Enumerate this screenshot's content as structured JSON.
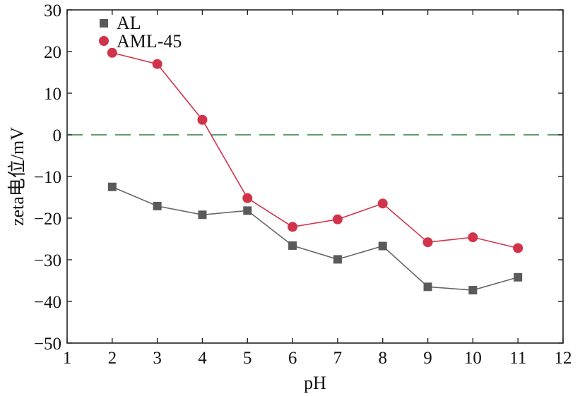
{
  "chart_data": {
    "type": "line",
    "title": "",
    "xlabel": "pH",
    "ylabel": "zeta电位/mV",
    "xlim": [
      1,
      12
    ],
    "ylim": [
      -50,
      30
    ],
    "xticks": [
      1,
      2,
      3,
      4,
      5,
      6,
      7,
      8,
      9,
      10,
      11,
      12
    ],
    "yticks": [
      30,
      20,
      10,
      0,
      -10,
      -20,
      -30,
      -40,
      -50
    ],
    "xtick_labels": [
      "1",
      "2",
      "3",
      "4",
      "5",
      "6",
      "7",
      "8",
      "9",
      "10",
      "11",
      "12"
    ],
    "ytick_labels": [
      "30",
      "20",
      "10",
      "0",
      "−10",
      "−20",
      "−30",
      "−40",
      "−50"
    ],
    "legend_position": "top-left",
    "reference_line": {
      "y": 0,
      "style": "dashed",
      "color": "#2e7d3a"
    },
    "series": [
      {
        "name": "AL",
        "marker": "square",
        "color": "#666666",
        "marker_color": "#5a5a5a",
        "x": [
          2,
          3,
          4,
          5,
          6,
          7,
          8,
          9,
          10,
          11
        ],
        "y": [
          -12.5,
          -17.1,
          -19.2,
          -18.2,
          -26.6,
          -29.9,
          -26.7,
          -36.5,
          -37.3,
          -34.2
        ]
      },
      {
        "name": "AML-45",
        "marker": "circle",
        "color": "#d2334a",
        "marker_color": "#d2334a",
        "x": [
          2,
          3,
          4,
          5,
          6,
          7,
          8,
          9,
          10,
          11
        ],
        "y": [
          19.7,
          17.0,
          3.6,
          -15.2,
          -22.1,
          -20.3,
          -16.5,
          -25.8,
          -24.6,
          -27.2
        ]
      }
    ]
  }
}
